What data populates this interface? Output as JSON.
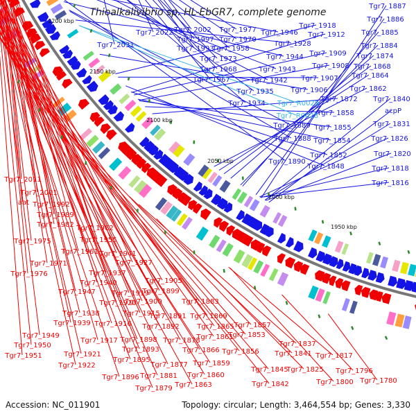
{
  "title": "Thioalkalivibrio sp. HL-EbGR7, complete genome",
  "accession": "Accession: NC_011901",
  "summary": "Topology: circular; Length: 3,464,554 bp; Genes: 3,330",
  "colors": {
    "plus_strand": "#1414e6",
    "minus_strand": "#f00000",
    "rna_label": "#33b5e5",
    "backbone": "#777777",
    "tick": "#2a8a2a"
  },
  "kbp_markers": [
    "2200 kbp",
    "2150 kbp",
    "2100 kbp",
    "2050 kbp",
    "2000 kbp",
    "1950 kbp"
  ],
  "plus_labels": [
    "Tgr7_2022",
    "Tgr7_2031",
    "Tgr7_2002",
    "Tgr7_1997",
    "Tgr7_1993",
    "Tgr7_1977",
    "Tgr7_1970",
    "Tgr7_1958",
    "Tgr7_1973",
    "Tgr7_1968",
    "Tgr7_1967",
    "Tgr7_1946",
    "Tgr7_1928",
    "Tgr7_1944",
    "Tgr7_1943",
    "Tgr7_1942",
    "Tgr7_1935",
    "Tgr7_1934",
    "Tgr7_1918",
    "Tgr7_1912",
    "Tgr7_1909",
    "Tgr7_1908",
    "Tgr7_1907",
    "Tgr7_1906",
    "Tgr7_1887",
    "Tgr7_1886",
    "Tgr7_1885",
    "Tgr7_1884",
    "Tgr7_1874",
    "Tgr7_1868",
    "Tgr7_1864",
    "Tgr7_1862",
    "Tgr7_1872",
    "Tgr7_1858",
    "Tgr7_1855",
    "Tgr7_1854",
    "Tgr7_1852",
    "Tgr7_1848",
    "Tgr7_1889",
    "Tgr7_1888",
    "Tgr7_1890",
    "acpP",
    "Tgr7_1840",
    "Tgr7_1831",
    "Tgr7_1826",
    "Tgr7_1820",
    "Tgr7_1818",
    "Tgr7_1816"
  ],
  "rna_labels": [
    "Tgr7_R0029",
    "Tgr7_R0028"
  ],
  "minus_labels": [
    "Tgr7_2011",
    "Tgr7_2001",
    "aat",
    "Tgr7_1992",
    "Tgr7_1989",
    "Tgr7_1982",
    "Tgr7_1975",
    "Tgr7_1962",
    "Tgr7_1955",
    "Tgr7_1961",
    "Tgr7_1971",
    "Tgr7_1976",
    "Tgr7_1941",
    "Tgr7_1927",
    "Tgr7_1937",
    "Tgr7_1940",
    "Tgr7_1947",
    "Tgr7_1919",
    "Tgr7_1920",
    "Tgr7_1938",
    "Tgr7_1939",
    "Tgr7_1915",
    "Tgr7_1916",
    "Tgr7_1949",
    "Tgr7_1950",
    "Tgr7_1951",
    "Tgr7_1917",
    "Tgr7_1921",
    "Tgr7_1922",
    "Tgr7_1905",
    "Tgr7_1899",
    "Tgr7_1900",
    "Tgr7_1891",
    "Tgr7_1892",
    "Tgr7_1898",
    "Tgr7_1893",
    "Tgr7_1895",
    "Tgr7_1896",
    "Tgr7_1883",
    "Tgr7_1878",
    "Tgr7_1877",
    "Tgr7_1881",
    "Tgr7_1879",
    "Tgr7_1869",
    "Tgr7_1865",
    "Tgr7_1861",
    "Tgr7_1866",
    "Tgr7_1859",
    "Tgr7_1860",
    "Tgr7_1863",
    "Tgr7_1857",
    "Tgr7_1853",
    "Tgr7_1856",
    "Tgr7_1837",
    "Tgr7_1841",
    "Tgr7_1845",
    "Tgr7_1842",
    "Tgr7_1825",
    "Tgr7_1817",
    "Tgr7_1796",
    "Tgr7_1800",
    "Tgr7_1780"
  ]
}
